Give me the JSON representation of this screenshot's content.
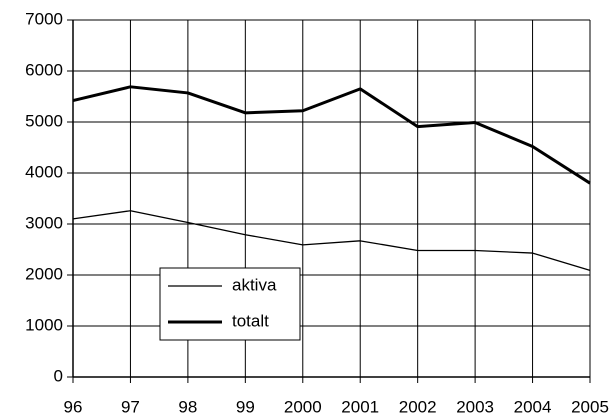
{
  "chart_data": {
    "type": "line",
    "categories": [
      "96",
      "97",
      "98",
      "99",
      "2000",
      "2001",
      "2002",
      "2003",
      "2004",
      "2005"
    ],
    "series": [
      {
        "name": "aktiva",
        "color": "#000000",
        "width": 1.3,
        "values": [
          3100,
          3260,
          3030,
          2790,
          2590,
          2670,
          2480,
          2480,
          2430,
          2090
        ]
      },
      {
        "name": "totalt",
        "color": "#000000",
        "width": 3,
        "values": [
          5420,
          5690,
          5570,
          5180,
          5220,
          5650,
          4910,
          4990,
          4520,
          3800
        ]
      }
    ],
    "ylim": [
      0,
      7000
    ],
    "yticks": [
      0,
      1000,
      2000,
      3000,
      4000,
      5000,
      6000,
      7000
    ],
    "grid": true,
    "legend": "lower left"
  }
}
